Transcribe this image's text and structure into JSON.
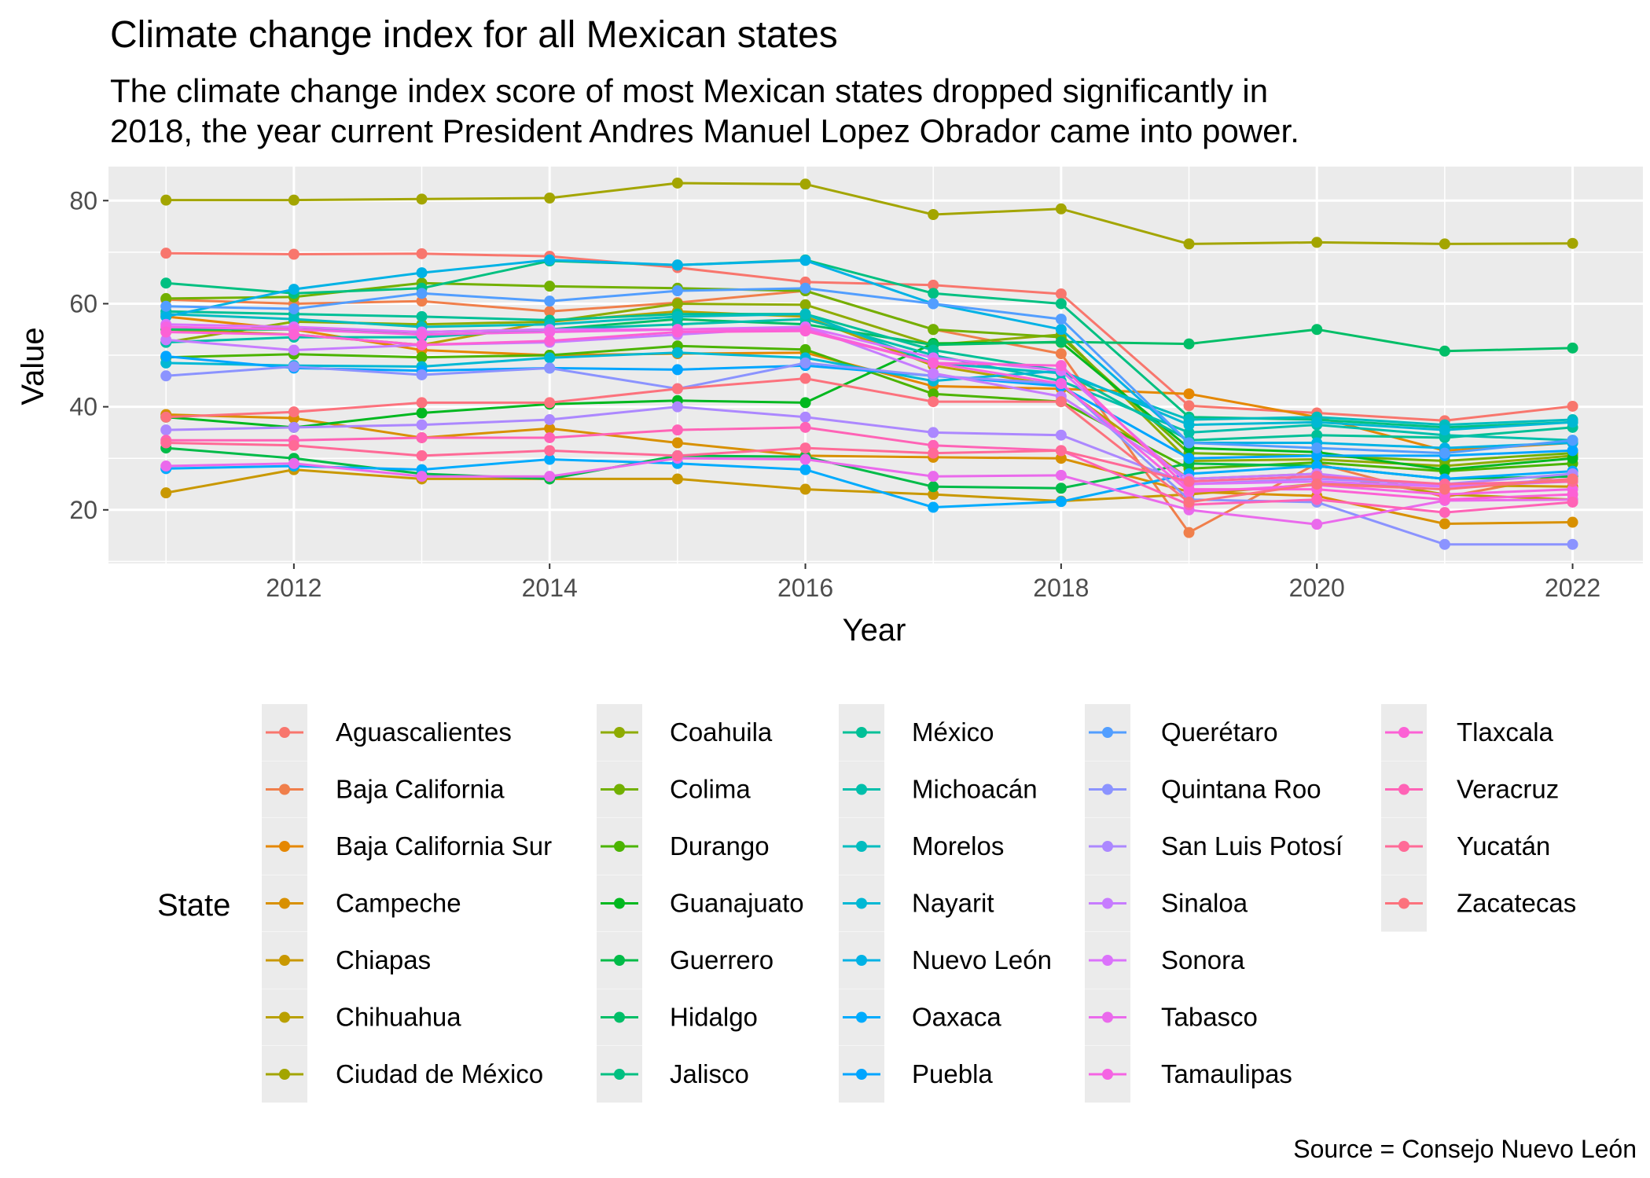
{
  "chart_data": {
    "type": "line",
    "title": "Climate change index for all Mexican states",
    "subtitle_lines": [
      "The climate change index score of most Mexican states dropped significantly in",
      "2018, the year current President Andres Manuel Lopez Obrador came into power."
    ],
    "xlabel": "Year",
    "ylabel": "Value",
    "caption": "Source = Consejo Nuevo León",
    "legend_title": "State",
    "legend_position": "bottom",
    "grid": true,
    "xlim": [
      2010.55,
      2022.55
    ],
    "ylim": [
      9.6,
      86.6
    ],
    "x_ticks": [
      2012,
      2014,
      2016,
      2018,
      2020,
      2022
    ],
    "y_ticks": [
      20,
      40,
      60,
      80
    ],
    "x": [
      2011,
      2012,
      2013,
      2014,
      2015,
      2016,
      2017,
      2018,
      2019,
      2020,
      2021,
      2022
    ],
    "series": [
      {
        "name": "Aguascalientes",
        "color": "#F8766D",
        "values": [
          69.8,
          69.6,
          69.7,
          69.2,
          67.0,
          64.2,
          63.6,
          61.9,
          40.2,
          38.8,
          37.3,
          40.1
        ]
      },
      {
        "name": "Baja California",
        "color": "#F07F4B",
        "values": [
          60.8,
          60.0,
          60.5,
          58.5,
          60.2,
          62.5,
          55.0,
          50.3,
          15.6,
          29.0,
          22.5,
          27.0
        ]
      },
      {
        "name": "Baja California Sur",
        "color": "#E58700",
        "values": [
          57.5,
          55.0,
          51.0,
          50.0,
          50.3,
          50.5,
          44.0,
          43.5,
          42.5,
          38.0,
          31.5,
          33.0
        ]
      },
      {
        "name": "Campeche",
        "color": "#D89000",
        "values": [
          38.5,
          37.8,
          34.0,
          35.8,
          33.0,
          30.5,
          30.2,
          30.0,
          23.5,
          22.7,
          17.3,
          17.6
        ]
      },
      {
        "name": "Chiapas",
        "color": "#C99800",
        "values": [
          23.3,
          27.8,
          26.0,
          26.0,
          26.0,
          24.0,
          23.0,
          21.7,
          23.0,
          25.0,
          24.8,
          24.5
        ]
      },
      {
        "name": "Chihuahua",
        "color": "#B9A000",
        "values": [
          55.0,
          54.0,
          52.0,
          56.5,
          58.5,
          57.5,
          48.0,
          44.0,
          26.0,
          27.0,
          23.0,
          22.0
        ]
      },
      {
        "name": "Ciudad de México",
        "color": "#A3A500",
        "values": [
          80.1,
          80.1,
          80.3,
          80.5,
          83.4,
          83.2,
          77.3,
          78.4,
          71.6,
          71.9,
          71.6,
          71.7
        ]
      },
      {
        "name": "Coahuila",
        "color": "#8EAB00",
        "values": [
          52.5,
          56.5,
          56.0,
          56.5,
          60.0,
          59.8,
          52.0,
          54.0,
          29.5,
          29.8,
          28.5,
          30.5
        ]
      },
      {
        "name": "Colima",
        "color": "#72B000",
        "values": [
          61.0,
          61.3,
          64.0,
          63.4,
          63.0,
          62.5,
          55.0,
          53.5,
          31.0,
          30.5,
          29.5,
          31.0
        ]
      },
      {
        "name": "Durango",
        "color": "#4BB400",
        "values": [
          49.6,
          50.2,
          49.6,
          50.0,
          51.8,
          51.1,
          42.5,
          41.0,
          28.0,
          29.2,
          27.5,
          29.0
        ]
      },
      {
        "name": "Guanajuato",
        "color": "#00B81F",
        "values": [
          38.0,
          36.0,
          38.8,
          40.5,
          41.2,
          40.8,
          52.3,
          52.5,
          32.0,
          31.2,
          27.8,
          30.0
        ]
      },
      {
        "name": "Guerrero",
        "color": "#00BB48",
        "values": [
          32.0,
          30.0,
          27.0,
          26.0,
          30.5,
          30.3,
          24.5,
          24.2,
          29.0,
          28.5,
          26.0,
          26.5
        ]
      },
      {
        "name": "Hidalgo",
        "color": "#00BE67",
        "values": [
          55.0,
          55.0,
          54.5,
          55.0,
          57.0,
          56.0,
          52.0,
          52.6,
          52.2,
          55.0,
          50.8,
          51.4
        ]
      },
      {
        "name": "Jalisco",
        "color": "#00C081",
        "values": [
          64.0,
          62.0,
          63.0,
          68.3,
          67.5,
          68.5,
          62.0,
          60.0,
          38.0,
          37.5,
          36.0,
          37.0
        ]
      },
      {
        "name": "México",
        "color": "#00C097",
        "values": [
          58.5,
          58.0,
          57.5,
          56.8,
          58.0,
          58.0,
          51.0,
          47.0,
          33.5,
          34.5,
          34.0,
          36.0
        ]
      },
      {
        "name": "Michoacán",
        "color": "#00BFAB",
        "values": [
          52.5,
          53.5,
          53.5,
          55.0,
          56.0,
          57.0,
          50.0,
          45.0,
          35.0,
          36.5,
          34.5,
          33.5
        ]
      },
      {
        "name": "Morelos",
        "color": "#00BCBF",
        "values": [
          58.0,
          57.0,
          55.5,
          56.0,
          57.5,
          58.0,
          48.5,
          46.5,
          37.5,
          38.0,
          36.5,
          37.5
        ]
      },
      {
        "name": "Nayarit",
        "color": "#00B8D4",
        "values": [
          48.5,
          48.0,
          47.8,
          49.5,
          50.5,
          49.5,
          45.0,
          47.0,
          36.5,
          37.0,
          35.5,
          37.0
        ]
      },
      {
        "name": "Nuevo León",
        "color": "#00B2E5",
        "values": [
          57.5,
          62.8,
          66.0,
          68.5,
          67.5,
          68.4,
          60.0,
          55.0,
          33.0,
          33.0,
          32.0,
          33.0
        ]
      },
      {
        "name": "Oaxaca",
        "color": "#00ABFD",
        "values": [
          28.0,
          28.5,
          27.8,
          29.8,
          29.0,
          27.8,
          20.5,
          21.6,
          27.0,
          28.5,
          26.0,
          27.5
        ]
      },
      {
        "name": "Puebla",
        "color": "#00A5FF",
        "values": [
          49.8,
          47.5,
          47.0,
          47.5,
          47.2,
          48.0,
          46.0,
          44.0,
          30.0,
          30.5,
          30.5,
          31.5
        ]
      },
      {
        "name": "Querétaro",
        "color": "#529EFF",
        "values": [
          59.5,
          59.0,
          62.0,
          60.5,
          62.5,
          63.0,
          60.0,
          57.0,
          33.0,
          32.0,
          31.0,
          33.5
        ]
      },
      {
        "name": "Quintana Roo",
        "color": "#8B93FF",
        "values": [
          46.0,
          47.8,
          46.2,
          47.5,
          43.5,
          48.5,
          46.0,
          44.5,
          22.0,
          21.5,
          13.3,
          13.3
        ]
      },
      {
        "name": "San Luis Potosí",
        "color": "#AC88FF",
        "values": [
          35.5,
          36.0,
          36.5,
          37.5,
          40.0,
          38.0,
          35.0,
          34.5,
          25.0,
          26.0,
          25.0,
          27.0
        ]
      },
      {
        "name": "Sinaloa",
        "color": "#C77CFF",
        "values": [
          53.0,
          51.0,
          52.0,
          52.5,
          54.0,
          55.5,
          46.5,
          42.0,
          26.0,
          27.0,
          24.5,
          26.0
        ]
      },
      {
        "name": "Sonora",
        "color": "#DB72FB",
        "values": [
          56.0,
          55.5,
          54.5,
          55.0,
          55.0,
          55.5,
          49.5,
          47.0,
          25.0,
          25.5,
          24.5,
          25.5
        ]
      },
      {
        "name": "Tabasco",
        "color": "#EA6AEC",
        "values": [
          28.5,
          29.0,
          26.5,
          26.5,
          30.0,
          29.8,
          26.5,
          26.7,
          20.0,
          17.2,
          21.8,
          22.0
        ]
      },
      {
        "name": "Tamaulipas",
        "color": "#F564E3",
        "values": [
          55.5,
          55.0,
          54.0,
          54.5,
          55.0,
          55.0,
          48.5,
          44.5,
          23.5,
          24.8,
          23.0,
          24.0
        ]
      },
      {
        "name": "Tlaxcala",
        "color": "#FC61D5",
        "values": [
          54.5,
          54.0,
          52.0,
          52.8,
          54.5,
          54.7,
          48.5,
          48.0,
          24.0,
          24.0,
          22.0,
          23.0
        ]
      },
      {
        "name": "Veracruz",
        "color": "#FF63B6",
        "values": [
          33.5,
          33.5,
          34.0,
          34.0,
          35.5,
          36.0,
          32.5,
          31.5,
          21.0,
          22.0,
          19.5,
          21.5
        ]
      },
      {
        "name": "Yucatán",
        "color": "#FF6A97",
        "values": [
          33.0,
          32.5,
          30.5,
          31.5,
          30.5,
          32.0,
          31.0,
          31.5,
          25.5,
          26.5,
          25.0,
          25.5
        ]
      },
      {
        "name": "Zacatecas",
        "color": "#FC727D",
        "values": [
          38.0,
          39.0,
          40.8,
          40.8,
          43.5,
          45.5,
          41.0,
          41.0,
          21.5,
          25.0,
          24.0,
          26.0
        ]
      }
    ]
  }
}
